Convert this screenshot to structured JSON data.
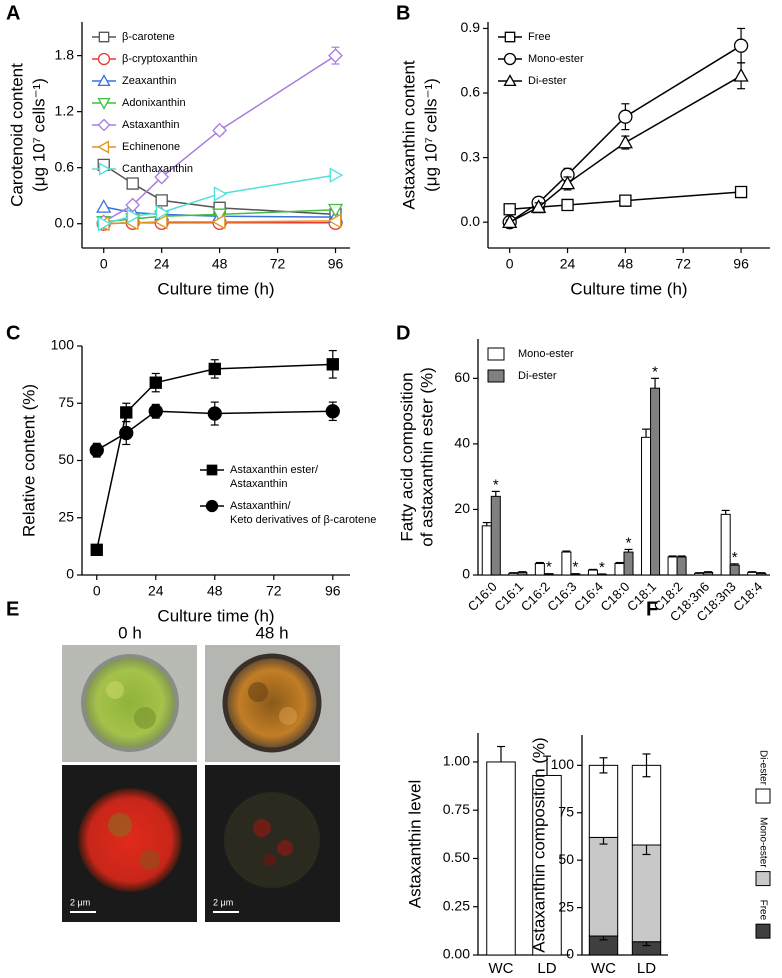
{
  "chart_data": [
    {
      "type": "line",
      "panel": "A",
      "xlabel": "Culture time (h)",
      "ylabel": [
        "Carotenoid content",
        "(μg 10⁷ cells⁻¹)"
      ],
      "x": [
        0,
        12,
        24,
        48,
        96
      ],
      "xlim": [
        -9,
        102
      ],
      "xticks": [
        0,
        24,
        48,
        72,
        96
      ],
      "ylim": [
        -0.26,
        2.16
      ],
      "yticks": [
        {
          "value": 0,
          "label": "0.0"
        },
        0.6,
        1.2,
        1.8
      ],
      "legend": "upper left",
      "series": [
        {
          "name": "β-carotene",
          "color": "#555555",
          "marker": "square",
          "values": [
            0.63,
            0.43,
            0.25,
            0.17,
            0.1
          ],
          "errors": [
            0.03,
            0.02,
            0.02,
            0.01,
            0.01
          ]
        },
        {
          "name": "β-cryptoxanthin",
          "color": "#e8382f",
          "marker": "circle",
          "values": [
            0,
            0.01,
            0.01,
            0.01,
            0.01
          ]
        },
        {
          "name": "Zeaxanthin",
          "color": "#3a6fe0",
          "marker": "triangle-up",
          "values": [
            0.18,
            0.12,
            0.1,
            0.08,
            0.07
          ]
        },
        {
          "name": "Adonixanthin",
          "color": "#3fbf3f",
          "marker": "triangle-down",
          "values": [
            0.02,
            0.05,
            0.08,
            0.1,
            0.15
          ]
        },
        {
          "name": "Astaxanthin",
          "color": "#a77be0",
          "marker": "diamond",
          "values": [
            0.02,
            0.2,
            0.5,
            1.0,
            1.8
          ],
          "errors": [
            0.01,
            0.02,
            0.04,
            0.04,
            0.09
          ]
        },
        {
          "name": "Echinenone",
          "color": "#e0961f",
          "marker": "triangle-left",
          "values": [
            0,
            0.01,
            0.02,
            0.02,
            0.03
          ]
        },
        {
          "name": "Canthaxanthin",
          "color": "#4fe0d8",
          "marker": "triangle-right",
          "values": [
            0,
            0.08,
            0.12,
            0.32,
            0.52
          ]
        }
      ]
    },
    {
      "type": "line",
      "panel": "B",
      "xlabel": "Culture time (h)",
      "ylabel": [
        "Astaxanthin content",
        "(μg 10⁷ cells⁻¹)"
      ],
      "x": [
        0,
        12,
        24,
        48,
        96
      ],
      "xlim": [
        -9,
        108
      ],
      "xticks": [
        0,
        24,
        48,
        72,
        96
      ],
      "ylim": [
        -0.12,
        0.93
      ],
      "yticks": [
        {
          "value": 0,
          "label": "0.0"
        },
        0.3,
        0.6,
        0.9
      ],
      "legend": "upper left",
      "series": [
        {
          "name": "Free",
          "color": "#000000",
          "marker": "square",
          "values": [
            0.06,
            0.07,
            0.08,
            0.1,
            0.14
          ],
          "errors": [
            0.01,
            0.01,
            0.01,
            0.02,
            0.02
          ]
        },
        {
          "name": "Mono-ester",
          "color": "#000000",
          "marker": "circle",
          "values": [
            0,
            0.09,
            0.22,
            0.49,
            0.82
          ],
          "errors": [
            0.02,
            0.02,
            0.03,
            0.06,
            0.08
          ]
        },
        {
          "name": "Di-ester",
          "color": "#000000",
          "marker": "triangle-up",
          "values": [
            0,
            0.07,
            0.18,
            0.37,
            0.68
          ],
          "errors": [
            0.01,
            0.02,
            0.03,
            0.03,
            0.06
          ]
        }
      ]
    },
    {
      "type": "line",
      "panel": "C",
      "xlabel": "Culture time (h)",
      "ylabel": "Relative content (%)",
      "x": [
        0,
        12,
        24,
        48,
        96
      ],
      "xlim": [
        -6,
        103
      ],
      "xticks": [
        0,
        24,
        48,
        72,
        96
      ],
      "ylim": [
        0,
        100
      ],
      "yticks": [
        0,
        25,
        50,
        75,
        100
      ],
      "legend": "lower right",
      "filled_markers": true,
      "series": [
        {
          "name": [
            "Astaxanthin ester/",
            "Astaxanthin"
          ],
          "color": "#000000",
          "marker": "square",
          "values": [
            11,
            71,
            84,
            90,
            92
          ],
          "errors": [
            2,
            4,
            4,
            4,
            6
          ]
        },
        {
          "name": [
            "Astaxanthin/",
            "Keto derivatives of β-carotene"
          ],
          "color": "#000000",
          "marker": "circle",
          "values": [
            54.5,
            62,
            71.5,
            70.5,
            71.5
          ],
          "errors": [
            3,
            5,
            3,
            5,
            4
          ]
        }
      ]
    },
    {
      "type": "bar",
      "panel": "D",
      "ylabel": [
        "Fatty acid composition",
        "of astaxanthin ester (%)"
      ],
      "categories": [
        "C16:0",
        "C16:1",
        "C16:2",
        "C16:3",
        "C16:4",
        "C18:0",
        "C18:1",
        "C18:2",
        "C18:3n6",
        "C18:3n3",
        "C18:4"
      ],
      "xtick_rotation": 45,
      "ylim": [
        0,
        72
      ],
      "yticks": [
        0,
        20,
        40,
        60
      ],
      "legend": "upper left",
      "series": [
        {
          "name": "Mono-ester",
          "color": "#ffffff",
          "values": [
            15,
            0.5,
            3.5,
            7,
            1.5,
            3.5,
            42,
            5.5,
            0.5,
            18.5,
            0.8
          ],
          "errors": [
            1,
            0.2,
            0.3,
            0.3,
            0.2,
            0.3,
            2.5,
            0.3,
            0.2,
            1.2,
            0.2
          ]
        },
        {
          "name": "Di-ester",
          "color": "#808080",
          "values": [
            24,
            0.8,
            0.3,
            0.3,
            0.2,
            7,
            57,
            5.5,
            0.8,
            3,
            0.5
          ],
          "errors": [
            1.5,
            0.2,
            0.1,
            0.1,
            0.1,
            0.8,
            3,
            0.3,
            0.2,
            0.4,
            0.2
          ],
          "annotations": [
            "*",
            null,
            "*",
            "*",
            "*",
            "*",
            "*",
            null,
            null,
            "*",
            null
          ]
        }
      ]
    },
    {
      "type": "bar",
      "panel": "F",
      "ylabel": "Astaxanthin level",
      "categories": [
        "WC",
        "LD"
      ],
      "ylim": [
        0,
        1.15
      ],
      "yticks": [
        {
          "value": 0,
          "label": "0.00"
        },
        0.25,
        {
          "value": 0.5,
          "label": "0.50"
        },
        0.75,
        {
          "value": 1,
          "label": "1.00"
        }
      ],
      "series": [
        {
          "color": "#ffffff",
          "values": [
            1.0,
            0.93
          ],
          "errors": [
            0.08,
            0.1
          ]
        }
      ]
    },
    {
      "type": "stacked_bar",
      "ylabel": "Astaxanthin composition (%)",
      "categories": [
        "WC",
        "LD"
      ],
      "ylim": [
        0,
        116
      ],
      "yticks": [
        0,
        25,
        50,
        75,
        100
      ],
      "legend": "right",
      "series": [
        {
          "name": "Free",
          "color": "#404040",
          "values": [
            10,
            7
          ],
          "errors": [
            2,
            2
          ]
        },
        {
          "name": "Mono-ester",
          "color": "#c8c8c8",
          "values": [
            52,
            51
          ],
          "errors": [
            3.5,
            5
          ]
        },
        {
          "name": "Di-ester",
          "color": "#ffffff",
          "values": [
            38,
            42
          ],
          "errors": [
            4,
            6
          ]
        }
      ]
    }
  ],
  "image_panel": {
    "panel": "E",
    "time_labels": [
      "0 h",
      "48 h"
    ],
    "scale_bar": "2 μm"
  }
}
